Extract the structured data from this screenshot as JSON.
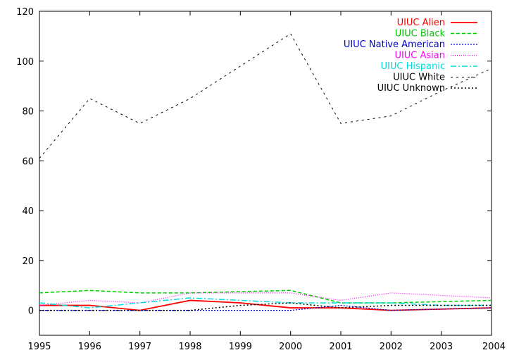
{
  "chart_data": {
    "type": "line",
    "title": "",
    "xlabel": "",
    "ylabel": "",
    "xlim": [
      1995,
      2004
    ],
    "ylim": [
      -10,
      120
    ],
    "xticks": [
      1995,
      1996,
      1997,
      1998,
      1999,
      2000,
      2001,
      2002,
      2003,
      2004
    ],
    "yticks": [
      0,
      20,
      40,
      60,
      80,
      100,
      120
    ],
    "grid": false,
    "legend_position": "top-right",
    "x": [
      1995,
      1996,
      1997,
      1998,
      1999,
      2000,
      2001,
      2002,
      2003,
      2004
    ],
    "series": [
      {
        "name": "UIUC Alien",
        "color": "#ff0000",
        "dash": "solid",
        "width": 1.8,
        "values": [
          2,
          2,
          0,
          4,
          3,
          1,
          1,
          0,
          0.5,
          1
        ]
      },
      {
        "name": "UIUC Black",
        "color": "#00cc00",
        "dash": "5,3",
        "width": 1.5,
        "values": [
          7,
          8,
          7,
          7,
          7.5,
          8,
          3,
          3,
          3.5,
          4
        ]
      },
      {
        "name": "UIUC Native American",
        "color": "#0000cc",
        "dash": "2,2",
        "width": 1.2,
        "values": [
          0,
          0,
          0,
          0,
          0,
          0,
          2,
          0,
          0.5,
          1
        ]
      },
      {
        "name": "UIUC Asian",
        "color": "#ff00ff",
        "dash": "1,2",
        "width": 1.2,
        "values": [
          2,
          4,
          3,
          7,
          7,
          7,
          4,
          7,
          6,
          5
        ]
      },
      {
        "name": "UIUC Hispanic",
        "color": "#00dddd",
        "dash": "8,3,2,3",
        "width": 1.5,
        "values": [
          3,
          1,
          3,
          5,
          4,
          3,
          3,
          3,
          2,
          2
        ]
      },
      {
        "name": "UIUC White",
        "color": "#000000",
        "dash": "3,5",
        "width": 1,
        "values": [
          61,
          85,
          75,
          85,
          98,
          111,
          75,
          78,
          88,
          97
        ]
      },
      {
        "name": "UIUC Unknown",
        "color": "#000000",
        "dash": "2,3",
        "width": 1.5,
        "values": [
          0,
          0,
          0,
          0,
          2,
          3,
          1,
          2,
          2,
          2
        ]
      }
    ]
  }
}
